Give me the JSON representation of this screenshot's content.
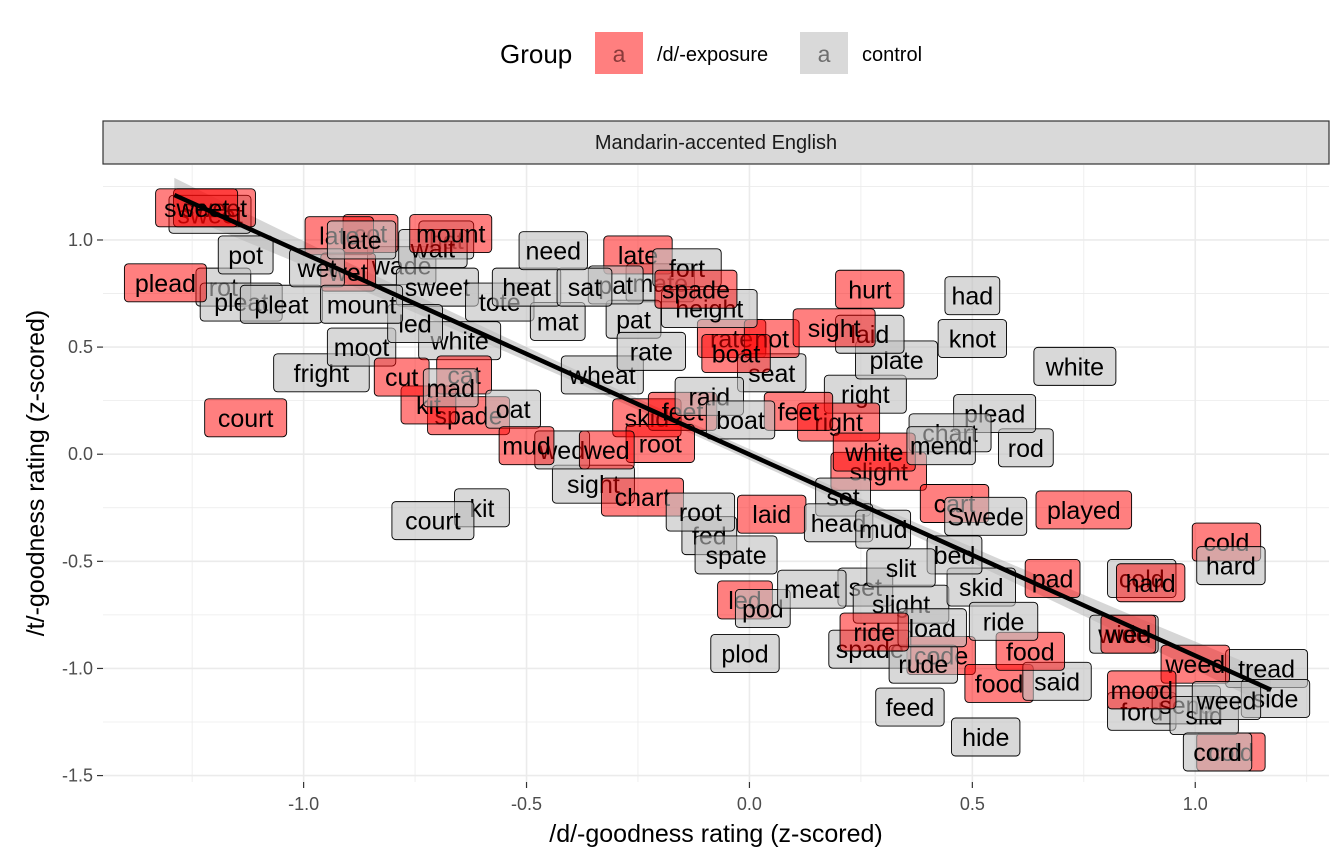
{
  "chart_data": {
    "type": "scatter",
    "facet": "Mandarin-accented English",
    "xlabel": "/d/-goodness rating (z-scored)",
    "ylabel": "/t/-goodness rating (z-scored)",
    "xlim": [
      -1.45,
      1.3
    ],
    "ylim": [
      -1.53,
      1.35
    ],
    "x_ticks": [
      -1.0,
      -0.5,
      0.0,
      0.5,
      1.0
    ],
    "x_tick_labels": [
      "-1.0",
      "-0.5",
      "0.0",
      "0.5",
      "1.0"
    ],
    "y_ticks": [
      -1.5,
      -1.0,
      -0.5,
      0.0,
      0.5,
      1.0
    ],
    "y_tick_labels": [
      "-1.5",
      "-1.0",
      "-0.5",
      "0.0",
      "0.5",
      "1.0"
    ],
    "grid": true,
    "legend": {
      "title": "Group",
      "position": "top",
      "key_glyph": "a",
      "entries": [
        {
          "label": "/d/-exposure",
          "color": "#FF0000"
        },
        {
          "label": "control",
          "color": "#BEBEBE"
        }
      ]
    },
    "regression_line": {
      "x": [
        -1.29,
        1.17
      ],
      "y": [
        1.21,
        -1.1
      ],
      "ribbon": true
    },
    "series": [
      {
        "name": "/d/-exposure",
        "color": "#FF0000",
        "points": [
          {
            "x": -1.24,
            "y": 1.15,
            "label": "sweet"
          },
          {
            "x": -1.2,
            "y": 1.15,
            "label": "sweet"
          },
          {
            "x": -1.31,
            "y": 0.8,
            "label": "plead"
          },
          {
            "x": -0.92,
            "y": 1.02,
            "label": "late"
          },
          {
            "x": -0.85,
            "y": 1.03,
            "label": "cot"
          },
          {
            "x": -0.67,
            "y": 1.03,
            "label": "mount"
          },
          {
            "x": -0.9,
            "y": 0.85,
            "label": "wet"
          },
          {
            "x": -0.25,
            "y": 0.93,
            "label": "late"
          },
          {
            "x": -0.12,
            "y": 0.77,
            "label": "spade"
          },
          {
            "x": 0.27,
            "y": 0.77,
            "label": "hurt"
          },
          {
            "x": 0.19,
            "y": 0.59,
            "label": "sight"
          },
          {
            "x": 0.05,
            "y": 0.54,
            "label": "not"
          },
          {
            "x": -0.04,
            "y": 0.54,
            "label": "rate"
          },
          {
            "x": -0.03,
            "y": 0.47,
            "label": "boat"
          },
          {
            "x": -1.13,
            "y": 0.17,
            "label": "court"
          },
          {
            "x": -0.78,
            "y": 0.36,
            "label": "cut"
          },
          {
            "x": -0.64,
            "y": 0.37,
            "label": "cat"
          },
          {
            "x": -0.72,
            "y": 0.23,
            "label": "kit"
          },
          {
            "x": -0.63,
            "y": 0.18,
            "label": "spade"
          },
          {
            "x": -0.5,
            "y": 0.04,
            "label": "mud"
          },
          {
            "x": -0.32,
            "y": 0.02,
            "label": "wed"
          },
          {
            "x": -0.2,
            "y": 0.05,
            "label": "root"
          },
          {
            "x": -0.23,
            "y": 0.17,
            "label": "skid"
          },
          {
            "x": -0.15,
            "y": 0.2,
            "label": "feet"
          },
          {
            "x": 0.11,
            "y": 0.2,
            "label": "feet"
          },
          {
            "x": 0.2,
            "y": 0.15,
            "label": "right"
          },
          {
            "x": 0.28,
            "y": 0.01,
            "label": "white"
          },
          {
            "x": 0.29,
            "y": -0.08,
            "label": "slight"
          },
          {
            "x": -0.24,
            "y": -0.2,
            "label": "chart"
          },
          {
            "x": 0.05,
            "y": -0.28,
            "label": "laid"
          },
          {
            "x": 0.46,
            "y": -0.23,
            "label": "cart"
          },
          {
            "x": 0.75,
            "y": -0.26,
            "label": "played"
          },
          {
            "x": 1.07,
            "y": -0.41,
            "label": "cold"
          },
          {
            "x": 0.9,
            "y": -0.6,
            "label": "hard"
          },
          {
            "x": 0.68,
            "y": -0.58,
            "label": "pad"
          },
          {
            "x": -0.01,
            "y": -0.68,
            "label": "led"
          },
          {
            "x": 0.28,
            "y": -0.83,
            "label": "ride"
          },
          {
            "x": 0.43,
            "y": -0.94,
            "label": "code"
          },
          {
            "x": 0.63,
            "y": -0.92,
            "label": "food"
          },
          {
            "x": 0.85,
            "y": -0.84,
            "label": "wed"
          },
          {
            "x": 1.0,
            "y": -0.98,
            "label": "weed"
          },
          {
            "x": 0.56,
            "y": -1.07,
            "label": "food"
          },
          {
            "x": 0.88,
            "y": -1.1,
            "label": "mood"
          },
          {
            "x": 1.08,
            "y": -1.39,
            "label": "cold"
          }
        ]
      },
      {
        "name": "control",
        "color": "#BEBEBE",
        "points": [
          {
            "x": -1.21,
            "y": 1.12,
            "label": "sweet"
          },
          {
            "x": -1.13,
            "y": 0.93,
            "label": "pot"
          },
          {
            "x": -1.18,
            "y": 0.78,
            "label": "rot"
          },
          {
            "x": -1.14,
            "y": 0.71,
            "label": "pleat"
          },
          {
            "x": -1.05,
            "y": 0.7,
            "label": "pleat"
          },
          {
            "x": -0.87,
            "y": 1.0,
            "label": "late"
          },
          {
            "x": -0.68,
            "y": 1.0,
            "label": "hat"
          },
          {
            "x": -0.71,
            "y": 0.96,
            "label": "wait"
          },
          {
            "x": -0.78,
            "y": 0.88,
            "label": "wade"
          },
          {
            "x": -0.97,
            "y": 0.87,
            "label": "wet"
          },
          {
            "x": -0.7,
            "y": 0.78,
            "label": "sweet"
          },
          {
            "x": -0.5,
            "y": 0.78,
            "label": "heat"
          },
          {
            "x": -0.56,
            "y": 0.71,
            "label": "tote"
          },
          {
            "x": -0.87,
            "y": 0.7,
            "label": "mount"
          },
          {
            "x": -0.44,
            "y": 0.95,
            "label": "need"
          },
          {
            "x": -0.37,
            "y": 0.78,
            "label": "sat"
          },
          {
            "x": -0.3,
            "y": 0.79,
            "label": "pat"
          },
          {
            "x": -0.2,
            "y": 0.8,
            "label": "mate"
          },
          {
            "x": -0.14,
            "y": 0.87,
            "label": "fort"
          },
          {
            "x": -0.09,
            "y": 0.68,
            "label": "height"
          },
          {
            "x": -0.43,
            "y": 0.62,
            "label": "mat"
          },
          {
            "x": -0.26,
            "y": 0.63,
            "label": "pat"
          },
          {
            "x": -0.75,
            "y": 0.61,
            "label": "led"
          },
          {
            "x": -0.65,
            "y": 0.53,
            "label": "white"
          },
          {
            "x": -0.87,
            "y": 0.5,
            "label": "moot"
          },
          {
            "x": -0.22,
            "y": 0.48,
            "label": "rate"
          },
          {
            "x": -0.33,
            "y": 0.37,
            "label": "wheat"
          },
          {
            "x": 0.05,
            "y": 0.38,
            "label": "seat"
          },
          {
            "x": -0.09,
            "y": 0.27,
            "label": "raid"
          },
          {
            "x": -0.02,
            "y": 0.16,
            "label": "boat"
          },
          {
            "x": -0.96,
            "y": 0.38,
            "label": "fright"
          },
          {
            "x": -0.67,
            "y": 0.31,
            "label": "mad"
          },
          {
            "x": -0.53,
            "y": 0.21,
            "label": "oat"
          },
          {
            "x": -0.42,
            "y": 0.02,
            "label": "wed"
          },
          {
            "x": -0.35,
            "y": -0.14,
            "label": "sight"
          },
          {
            "x": -0.71,
            "y": -0.31,
            "label": "court"
          },
          {
            "x": -0.6,
            "y": -0.25,
            "label": "kit"
          },
          {
            "x": -0.11,
            "y": -0.27,
            "label": "root"
          },
          {
            "x": -0.03,
            "y": -0.47,
            "label": "spate"
          },
          {
            "x": -0.09,
            "y": -0.38,
            "label": "fed"
          },
          {
            "x": -0.01,
            "y": -0.93,
            "label": "plod"
          },
          {
            "x": 0.21,
            "y": -0.2,
            "label": "set"
          },
          {
            "x": 0.2,
            "y": -0.32,
            "label": "head"
          },
          {
            "x": 0.3,
            "y": -0.35,
            "label": "mud"
          },
          {
            "x": 0.27,
            "y": 0.56,
            "label": "laid"
          },
          {
            "x": 0.33,
            "y": 0.44,
            "label": "plate"
          },
          {
            "x": 0.26,
            "y": 0.28,
            "label": "right"
          },
          {
            "x": 0.5,
            "y": 0.74,
            "label": "had"
          },
          {
            "x": 0.5,
            "y": 0.54,
            "label": "knot"
          },
          {
            "x": 0.73,
            "y": 0.41,
            "label": "white"
          },
          {
            "x": 0.55,
            "y": 0.19,
            "label": "plead"
          },
          {
            "x": 0.45,
            "y": 0.1,
            "label": "chart"
          },
          {
            "x": 0.43,
            "y": 0.04,
            "label": "mend"
          },
          {
            "x": 0.62,
            "y": 0.03,
            "label": "rod"
          },
          {
            "x": 0.53,
            "y": -0.29,
            "label": "Swede"
          },
          {
            "x": 0.46,
            "y": -0.47,
            "label": "bed"
          },
          {
            "x": 0.34,
            "y": -0.53,
            "label": "slit"
          },
          {
            "x": 0.52,
            "y": -0.62,
            "label": "skid"
          },
          {
            "x": 0.88,
            "y": -0.58,
            "label": "cold"
          },
          {
            "x": 1.08,
            "y": -0.52,
            "label": "hard"
          },
          {
            "x": 0.14,
            "y": -0.63,
            "label": "meat"
          },
          {
            "x": 0.03,
            "y": -0.72,
            "label": "pod"
          },
          {
            "x": 0.26,
            "y": -0.62,
            "label": "set"
          },
          {
            "x": 0.34,
            "y": -0.7,
            "label": "slight"
          },
          {
            "x": 0.57,
            "y": -0.78,
            "label": "ride"
          },
          {
            "x": 0.41,
            "y": -0.81,
            "label": "load"
          },
          {
            "x": 0.84,
            "y": -0.84,
            "label": "wide"
          },
          {
            "x": 0.27,
            "y": -0.91,
            "label": "spade"
          },
          {
            "x": 0.39,
            "y": -0.98,
            "label": "rude"
          },
          {
            "x": 0.69,
            "y": -1.06,
            "label": "said"
          },
          {
            "x": 0.36,
            "y": -1.18,
            "label": "feed"
          },
          {
            "x": 0.53,
            "y": -1.32,
            "label": "hide"
          },
          {
            "x": 0.88,
            "y": -1.2,
            "label": "ford"
          },
          {
            "x": 0.98,
            "y": -1.17,
            "label": "send"
          },
          {
            "x": 1.02,
            "y": -1.22,
            "label": "slid"
          },
          {
            "x": 1.07,
            "y": -1.15,
            "label": "weed"
          },
          {
            "x": 1.18,
            "y": -1.14,
            "label": "side"
          },
          {
            "x": 1.16,
            "y": -1.0,
            "label": "tread"
          },
          {
            "x": 1.05,
            "y": -1.39,
            "label": "cord"
          }
        ]
      }
    ]
  }
}
